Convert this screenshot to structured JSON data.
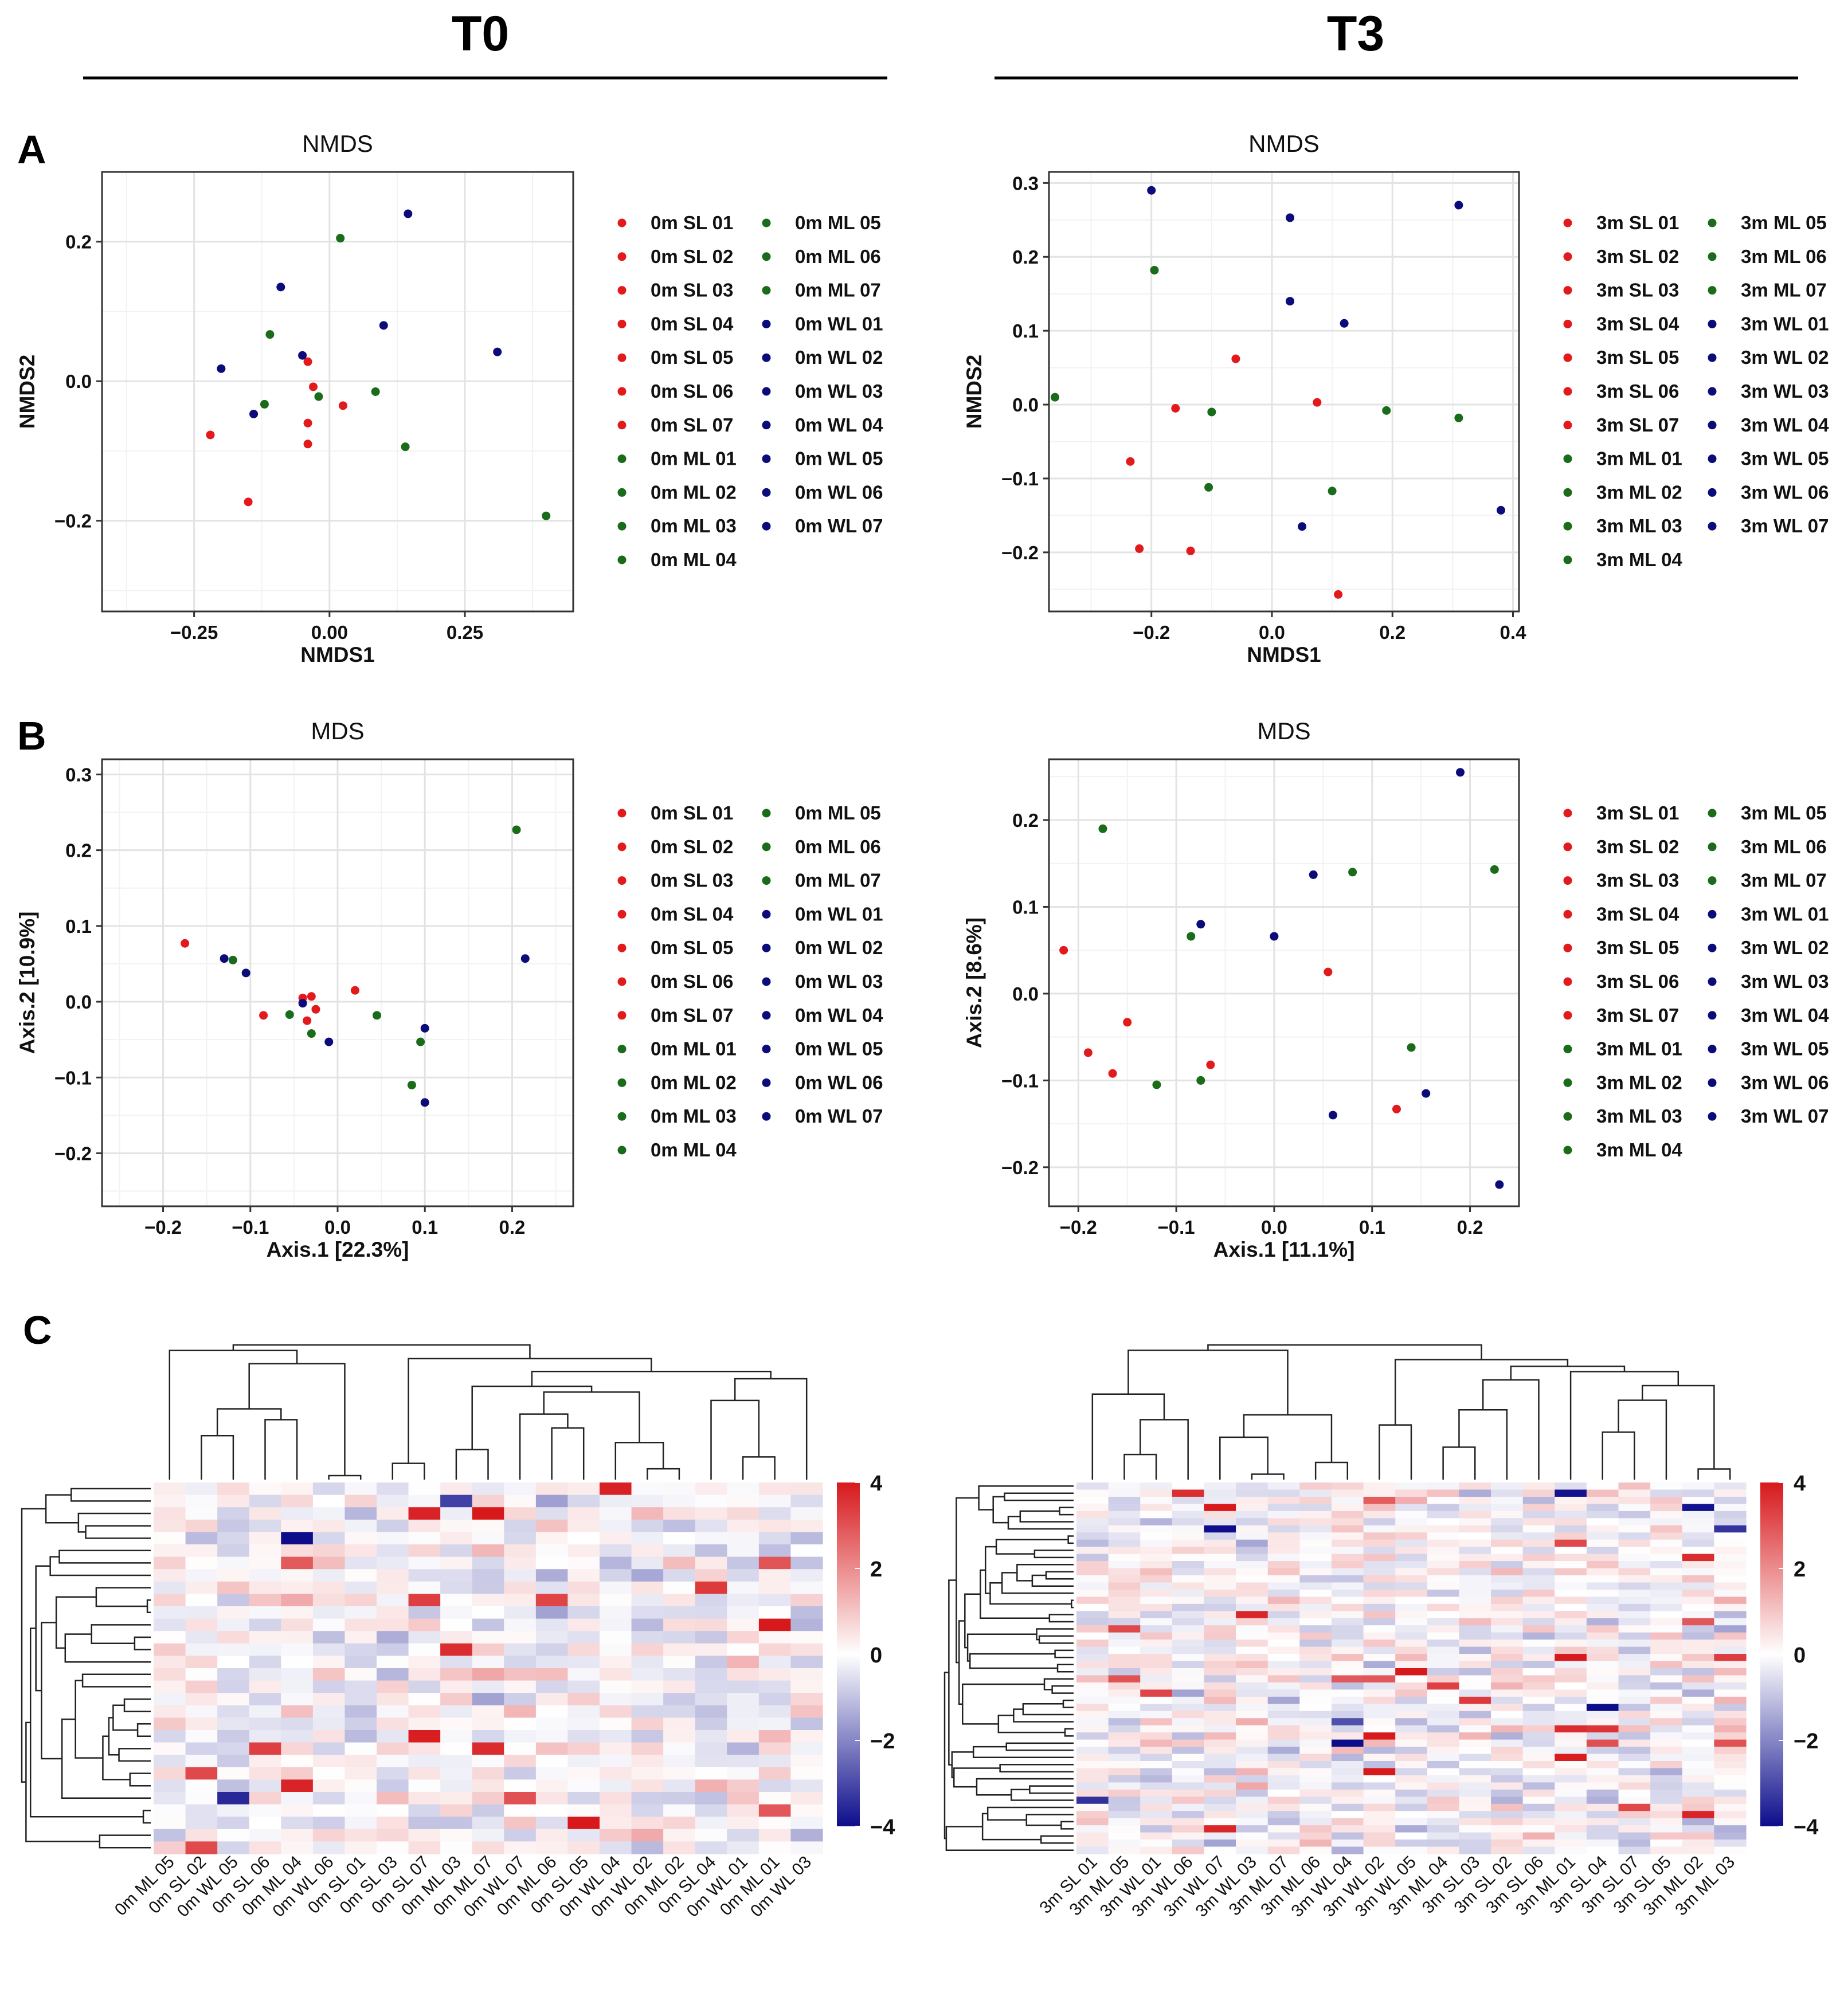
{
  "headers": {
    "left": "T0",
    "right": "T3"
  },
  "panel_letters": {
    "a": "A",
    "b": "B",
    "c": "C"
  },
  "colors": {
    "SL": "#e31a1c",
    "ML": "#1a6b1a",
    "WL": "#0b0b7a",
    "heat_low": "#0d0d8c",
    "heat_mid": "#ffffff",
    "heat_high": "#d7191c"
  },
  "legends": {
    "t0": {
      "col1": [
        "0m SL 01",
        "0m SL 02",
        "0m SL 03",
        "0m SL 04",
        "0m SL 05",
        "0m SL 06",
        "0m SL 07",
        "0m ML 01",
        "0m ML 02",
        "0m ML 03",
        "0m ML 04"
      ],
      "col2": [
        "0m ML 05",
        "0m ML 06",
        "0m ML 07",
        "0m WL 01",
        "0m WL 02",
        "0m WL 03",
        "0m WL 04",
        "0m WL 05",
        "0m WL 06",
        "0m WL 07"
      ]
    },
    "t3": {
      "col1": [
        "3m SL 01",
        "3m SL 02",
        "3m SL 03",
        "3m SL 04",
        "3m SL 05",
        "3m SL 06",
        "3m SL 07",
        "3m ML 01",
        "3m ML 02",
        "3m ML 03",
        "3m ML 04"
      ],
      "col2": [
        "3m ML 05",
        "3m ML 06",
        "3m ML 07",
        "3m WL 01",
        "3m WL 02",
        "3m WL 03",
        "3m WL 04",
        "3m WL 05",
        "3m WL 06",
        "3m WL 07"
      ]
    }
  },
  "chart_data": [
    {
      "id": "nmds_t0",
      "type": "scatter",
      "title": "NMDS",
      "xlabel": "NMDS1",
      "ylabel": "NMDS2",
      "xlim": [
        -0.42,
        0.45
      ],
      "ylim": [
        -0.33,
        0.3
      ],
      "xticks": [
        -0.25,
        0,
        0.25
      ],
      "xtick_labels": [
        "−0.25",
        "0.00",
        "0.25"
      ],
      "yticks": [
        -0.2,
        0,
        0.2
      ],
      "ytick_labels": [
        "−0.2",
        "0.0",
        "0.2"
      ],
      "series": [
        {
          "name": "SL",
          "points": [
            [
              -0.22,
              -0.077
            ],
            [
              -0.15,
              -0.173
            ],
            [
              -0.04,
              0.028
            ],
            [
              -0.03,
              -0.008
            ],
            [
              -0.04,
              -0.06
            ],
            [
              -0.04,
              -0.09
            ],
            [
              0.025,
              -0.035
            ]
          ]
        },
        {
          "name": "ML",
          "points": [
            [
              0.02,
              0.205
            ],
            [
              -0.11,
              0.067
            ],
            [
              -0.02,
              -0.022
            ],
            [
              -0.12,
              -0.033
            ],
            [
              0.085,
              -0.015
            ],
            [
              0.14,
              -0.094
            ],
            [
              0.4,
              -0.193
            ]
          ]
        },
        {
          "name": "WL",
          "points": [
            [
              0.145,
              0.24
            ],
            [
              -0.09,
              0.135
            ],
            [
              0.1,
              0.08
            ],
            [
              -0.05,
              0.037
            ],
            [
              -0.2,
              0.018
            ],
            [
              -0.14,
              -0.047
            ],
            [
              0.31,
              0.042
            ]
          ]
        }
      ]
    },
    {
      "id": "nmds_t3",
      "type": "scatter",
      "title": "NMDS",
      "xlabel": "NMDS1",
      "ylabel": "NMDS2",
      "xlim": [
        -0.37,
        0.41
      ],
      "ylim": [
        -0.28,
        0.315
      ],
      "xticks": [
        -0.2,
        0,
        0.2,
        0.4
      ],
      "xtick_labels": [
        "−0.2",
        "0.0",
        "0.2",
        "0.4"
      ],
      "yticks": [
        -0.2,
        -0.1,
        0,
        0.1,
        0.2,
        0.3
      ],
      "ytick_labels": [
        "−0.2",
        "−0.1",
        "0.0",
        "0.1",
        "0.2",
        "0.3"
      ],
      "series": [
        {
          "name": "SL",
          "points": [
            [
              -0.06,
              0.062
            ],
            [
              -0.16,
              -0.005
            ],
            [
              0.075,
              0.003
            ],
            [
              -0.235,
              -0.077
            ],
            [
              -0.22,
              -0.195
            ],
            [
              -0.135,
              -0.198
            ],
            [
              0.11,
              -0.257
            ]
          ]
        },
        {
          "name": "ML",
          "points": [
            [
              -0.195,
              0.182
            ],
            [
              -0.36,
              0.01
            ],
            [
              -0.1,
              -0.01
            ],
            [
              -0.105,
              -0.112
            ],
            [
              0.19,
              -0.008
            ],
            [
              0.31,
              -0.018
            ],
            [
              0.1,
              -0.117
            ]
          ]
        },
        {
          "name": "WL",
          "points": [
            [
              -0.2,
              0.29
            ],
            [
              0.03,
              0.253
            ],
            [
              0.31,
              0.27
            ],
            [
              0.03,
              0.14
            ],
            [
              0.12,
              0.11
            ],
            [
              0.38,
              -0.143
            ],
            [
              0.05,
              -0.165
            ]
          ]
        }
      ]
    },
    {
      "id": "mds_t0",
      "type": "scatter",
      "title": "MDS",
      "xlabel": "Axis.1   [22.3%]",
      "ylabel": "Axis.2   [10.9%]",
      "xlim": [
        -0.27,
        0.27
      ],
      "ylim": [
        -0.27,
        0.32
      ],
      "xticks": [
        -0.2,
        -0.1,
        0,
        0.1,
        0.2
      ],
      "xtick_labels": [
        "−0.2",
        "−0.1",
        "0.0",
        "0.1",
        "0.2"
      ],
      "yticks": [
        -0.2,
        -0.1,
        0,
        0.1,
        0.2,
        0.3
      ],
      "ytick_labels": [
        "−0.2",
        "−0.1",
        "0.0",
        "0.1",
        "0.2",
        "0.3"
      ],
      "series": [
        {
          "name": "SL",
          "points": [
            [
              -0.175,
              0.077
            ],
            [
              -0.085,
              -0.018
            ],
            [
              -0.04,
              0.005
            ],
            [
              -0.03,
              0.007
            ],
            [
              -0.025,
              -0.01
            ],
            [
              -0.035,
              -0.025
            ],
            [
              0.02,
              0.015
            ]
          ]
        },
        {
          "name": "ML",
          "points": [
            [
              0.205,
              0.227
            ],
            [
              -0.12,
              0.055
            ],
            [
              -0.055,
              -0.017
            ],
            [
              -0.03,
              -0.042
            ],
            [
              0.045,
              -0.018
            ],
            [
              0.095,
              -0.053
            ],
            [
              0.085,
              -0.11
            ]
          ]
        },
        {
          "name": "WL",
          "points": [
            [
              -0.13,
              0.057
            ],
            [
              -0.105,
              0.038
            ],
            [
              -0.04,
              -0.002
            ],
            [
              -0.01,
              -0.053
            ],
            [
              0.1,
              -0.035
            ],
            [
              0.1,
              -0.133
            ],
            [
              0.215,
              0.057
            ]
          ]
        }
      ]
    },
    {
      "id": "mds_t3",
      "type": "scatter",
      "title": "MDS",
      "xlabel": "Axis.1   [11.1%]",
      "ylabel": "Axis.2   [8.6%]",
      "xlim": [
        -0.23,
        0.25
      ],
      "ylim": [
        -0.245,
        0.27
      ],
      "xticks": [
        -0.2,
        -0.1,
        0,
        0.1,
        0.2
      ],
      "xtick_labels": [
        "−0.2",
        "−0.1",
        "0.0",
        "0.1",
        "0.2"
      ],
      "yticks": [
        -0.2,
        -0.1,
        0,
        0.1,
        0.2
      ],
      "ytick_labels": [
        "−0.2",
        "−0.1",
        "0.0",
        "0.1",
        "0.2"
      ],
      "series": [
        {
          "name": "SL",
          "points": [
            [
              -0.215,
              0.05
            ],
            [
              -0.15,
              -0.033
            ],
            [
              -0.19,
              -0.068
            ],
            [
              -0.165,
              -0.092
            ],
            [
              -0.065,
              -0.082
            ],
            [
              0.055,
              0.025
            ],
            [
              0.125,
              -0.133
            ]
          ]
        },
        {
          "name": "ML",
          "points": [
            [
              -0.175,
              0.19
            ],
            [
              -0.085,
              0.066
            ],
            [
              0.08,
              0.14
            ],
            [
              0.225,
              0.143
            ],
            [
              0.14,
              -0.062
            ],
            [
              -0.12,
              -0.105
            ],
            [
              -0.075,
              -0.1
            ]
          ]
        },
        {
          "name": "WL",
          "points": [
            [
              0.19,
              0.255
            ],
            [
              0.04,
              0.137
            ],
            [
              -0.075,
              0.08
            ],
            [
              0,
              0.066
            ],
            [
              0.06,
              -0.14
            ],
            [
              0.155,
              -0.115
            ],
            [
              0.23,
              -0.22
            ]
          ]
        }
      ]
    },
    {
      "id": "heat_t0",
      "type": "heatmap",
      "rows": 30,
      "seed": 7,
      "columns": [
        "0m ML 05",
        "0m SL 02",
        "0m WL 05",
        "0m SL 06",
        "0m ML 04",
        "0m WL 06",
        "0m SL 01",
        "0m SL 03",
        "0m SL 07",
        "0m ML 03",
        "0m ML 07",
        "0m WL 07",
        "0m ML 06",
        "0m SL 05",
        "0m WL 04",
        "0m WL 02",
        "0m ML 02",
        "0m SL 04",
        "0m WL 01",
        "0m ML 01",
        "0m WL 03"
      ],
      "colorbar": {
        "min": -4,
        "max": 4,
        "ticks": [
          4,
          2,
          0,
          -2,
          -4
        ],
        "tick_labels": [
          "4",
          "2",
          "0",
          "−2",
          "−4"
        ]
      }
    },
    {
      "id": "heat_t3",
      "type": "heatmap",
      "rows": 52,
      "seed": 19,
      "columns": [
        "3m SL 01",
        "3m ML 05",
        "3m WL 01",
        "3m WL 06",
        "3m WL 07",
        "3m WL 03",
        "3m ML 07",
        "3m ML 06",
        "3m WL 04",
        "3m WL 02",
        "3m WL 05",
        "3m ML 04",
        "3m SL 03",
        "3m SL 02",
        "3m SL 06",
        "3m ML 01",
        "3m SL 04",
        "3m SL 07",
        "3m SL 05",
        "3m ML 02",
        "3m ML 03"
      ],
      "colorbar": {
        "min": -4,
        "max": 4,
        "ticks": [
          4,
          2,
          0,
          -2,
          -4
        ],
        "tick_labels": [
          "4",
          "2",
          "0",
          "−2",
          "−4"
        ]
      }
    }
  ]
}
